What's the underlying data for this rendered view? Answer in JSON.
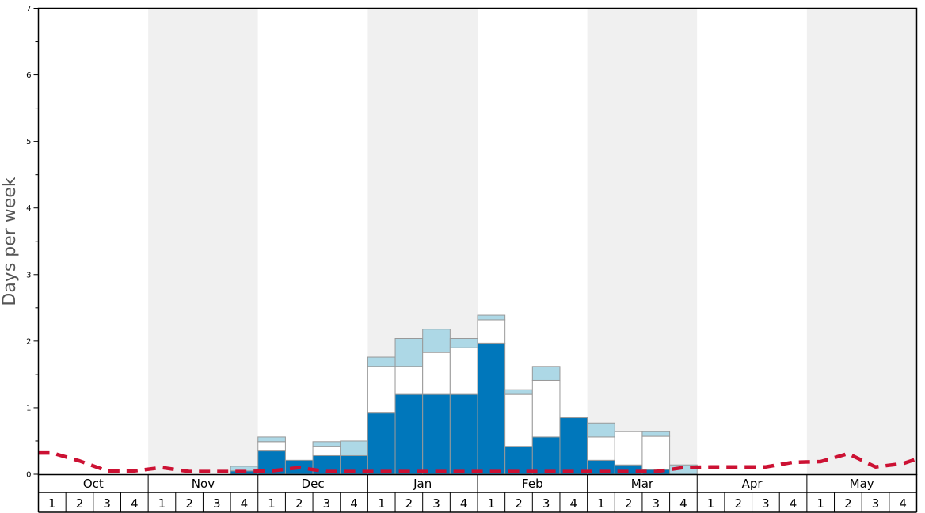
{
  "chart_data": {
    "type": "bar",
    "ylabel": "Days per week",
    "ylim": [
      0,
      7
    ],
    "y_ticks": [
      "0",
      "1",
      "2",
      "3",
      "4",
      "5",
      "6",
      "7"
    ],
    "months": [
      "Oct",
      "Nov",
      "Dec",
      "Jan",
      "Feb",
      "Mar",
      "Apr",
      "May"
    ],
    "weeks": [
      "1",
      "2",
      "3",
      "4"
    ],
    "categories": [
      "Oct 1",
      "Oct 2",
      "Oct 3",
      "Oct 4",
      "Nov 1",
      "Nov 2",
      "Nov 3",
      "Nov 4",
      "Dec 1",
      "Dec 2",
      "Dec 3",
      "Dec 4",
      "Jan 1",
      "Jan 2",
      "Jan 3",
      "Jan 4",
      "Feb 1",
      "Feb 2",
      "Feb 3",
      "Feb 4",
      "Mar 1",
      "Mar 2",
      "Mar 3",
      "Mar 4",
      "Apr 1",
      "Apr 2",
      "Apr 3",
      "Apr 4",
      "May 1",
      "May 2",
      "May 3",
      "May 4"
    ],
    "stacked": true,
    "series": [
      {
        "color": "#0077bb",
        "values": [
          0,
          0,
          0,
          0,
          0,
          0,
          0,
          0.05,
          0.35,
          0.21,
          0.28,
          0.28,
          0.92,
          1.2,
          1.2,
          1.2,
          1.97,
          0.42,
          0.56,
          0.85,
          0.21,
          0.14,
          0.07,
          0,
          0,
          0,
          0,
          0,
          0,
          0,
          0,
          0
        ]
      },
      {
        "color": "#ffffff",
        "values": [
          0,
          0,
          0,
          0,
          0,
          0,
          0,
          0,
          0.14,
          0,
          0.14,
          0,
          0.7,
          0.42,
          0.63,
          0.7,
          0.35,
          0.78,
          0.85,
          0,
          0.35,
          0.5,
          0.5,
          0,
          0,
          0,
          0,
          0,
          0,
          0,
          0,
          0
        ]
      },
      {
        "color": "#add8e6",
        "values": [
          0,
          0,
          0,
          0,
          0,
          0,
          0,
          0.07,
          0.07,
          0,
          0.07,
          0.22,
          0.14,
          0.42,
          0.35,
          0.14,
          0.07,
          0.07,
          0.21,
          0,
          0.21,
          0,
          0.07,
          0.14,
          0,
          0,
          0,
          0,
          0,
          0,
          0,
          0
        ]
      }
    ],
    "line": {
      "color": "#cc1133",
      "style": "dashed",
      "values": [
        0.32,
        0.2,
        0.05,
        0.05,
        0.1,
        0.04,
        0.04,
        0.04,
        0.05,
        0.1,
        0.04,
        0.04,
        0.04,
        0.04,
        0.04,
        0.04,
        0.04,
        0.04,
        0.04,
        0.04,
        0.04,
        0.04,
        0.04,
        0.1,
        0.11,
        0.11,
        0.11,
        0.18,
        0.19,
        0.31,
        0.11,
        0.16
      ]
    },
    "band_colors": [
      "#ffffff",
      "#f0f0f0"
    ],
    "grid": false
  }
}
